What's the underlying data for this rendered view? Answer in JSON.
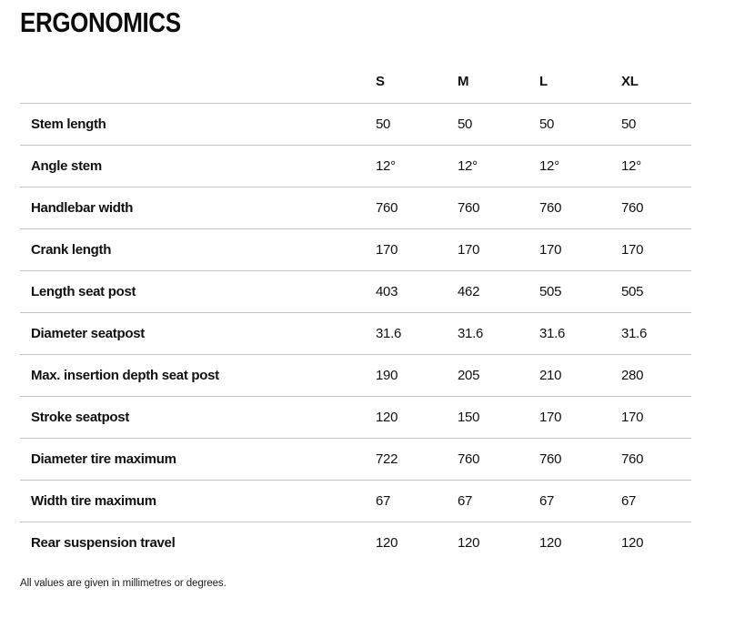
{
  "page": {
    "title": "ERGONOMICS",
    "footnote": "All values are given in millimetres or degrees."
  },
  "colors": {
    "text": "#111111",
    "divider": "#c4c4c4",
    "background": "#ffffff"
  },
  "table": {
    "columns": [
      "S",
      "M",
      "L",
      "XL"
    ],
    "rows": [
      {
        "label": "Stem length",
        "values": [
          "50",
          "50",
          "50",
          "50"
        ]
      },
      {
        "label": "Angle stem",
        "values": [
          "12°",
          "12°",
          "12°",
          "12°"
        ]
      },
      {
        "label": "Handlebar width",
        "values": [
          "760",
          "760",
          "760",
          "760"
        ]
      },
      {
        "label": "Crank length",
        "values": [
          "170",
          "170",
          "170",
          "170"
        ]
      },
      {
        "label": "Length seat post",
        "values": [
          "403",
          "462",
          "505",
          "505"
        ]
      },
      {
        "label": "Diameter seatpost",
        "values": [
          "31.6",
          "31.6",
          "31.6",
          "31.6"
        ]
      },
      {
        "label": "Max. insertion depth seat post",
        "values": [
          "190",
          "205",
          "210",
          "280"
        ]
      },
      {
        "label": "Stroke seatpost",
        "values": [
          "120",
          "150",
          "170",
          "170"
        ]
      },
      {
        "label": "Diameter tire maximum",
        "values": [
          "722",
          "760",
          "760",
          "760"
        ]
      },
      {
        "label": "Width tire maximum",
        "values": [
          "67",
          "67",
          "67",
          "67"
        ]
      },
      {
        "label": "Rear suspension travel",
        "values": [
          "120",
          "120",
          "120",
          "120"
        ]
      }
    ]
  }
}
